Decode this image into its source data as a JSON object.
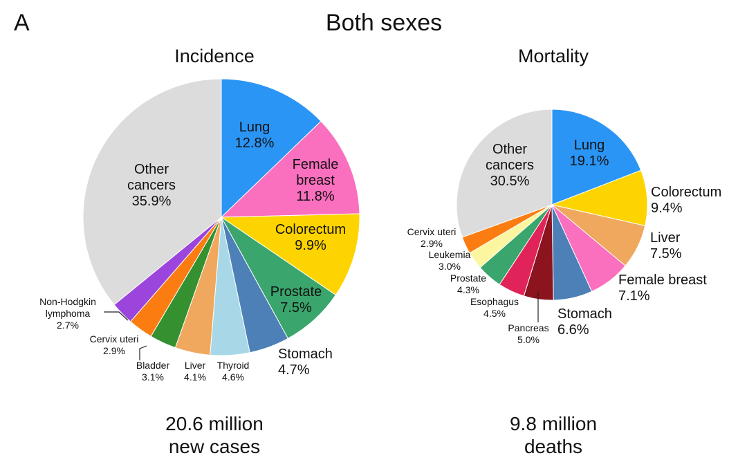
{
  "panel_letter": "A",
  "title": "Both sexes",
  "chart_data": [
    {
      "type": "pie",
      "title": "Incidence",
      "footer": [
        "20.6 million",
        "new cases"
      ],
      "start": "12 o'clock",
      "direction": "clockwise",
      "slices": [
        {
          "label": "Lung",
          "value": 12.8,
          "display": "12.8%",
          "color": "#2b95f5"
        },
        {
          "label": "Female breast",
          "value": 11.8,
          "display": "11.8%",
          "color": "#fb6fbf"
        },
        {
          "label": "Colorectum",
          "value": 9.9,
          "display": "9.9%",
          "color": "#fdd400"
        },
        {
          "label": "Prostate",
          "value": 7.5,
          "display": "7.5%",
          "color": "#3aa56c"
        },
        {
          "label": "Stomach",
          "value": 4.7,
          "display": "4.7%",
          "color": "#4d80b6"
        },
        {
          "label": "Thyroid",
          "value": 4.6,
          "display": "4.6%",
          "color": "#a8d8e8"
        },
        {
          "label": "Liver",
          "value": 4.1,
          "display": "4.1%",
          "color": "#f0a85e"
        },
        {
          "label": "Bladder",
          "value": 3.1,
          "display": "3.1%",
          "color": "#35902f"
        },
        {
          "label": "Cervix uteri",
          "value": 2.9,
          "display": "2.9%",
          "color": "#fb7d12"
        },
        {
          "label": "Non-Hodgkin lymphoma",
          "value": 2.7,
          "display": "2.7%",
          "color": "#9b45dd"
        },
        {
          "label": "Other cancers",
          "value": 35.9,
          "display": "35.9%",
          "color": "#dcdcdc"
        }
      ]
    },
    {
      "type": "pie",
      "title": "Mortality",
      "footer": [
        "9.8 million",
        "deaths"
      ],
      "start": "12 o'clock",
      "direction": "clockwise",
      "slices": [
        {
          "label": "Lung",
          "value": 19.1,
          "display": "19.1%",
          "color": "#2b95f5"
        },
        {
          "label": "Colorectum",
          "value": 9.4,
          "display": "9.4%",
          "color": "#fdd400"
        },
        {
          "label": "Liver",
          "value": 7.5,
          "display": "7.5%",
          "color": "#f0a85e"
        },
        {
          "label": "Female breast",
          "value": 7.1,
          "display": "7.1%",
          "color": "#fb6fbf"
        },
        {
          "label": "Stomach",
          "value": 6.6,
          "display": "6.6%",
          "color": "#4d80b6"
        },
        {
          "label": "Pancreas",
          "value": 5.0,
          "display": "5.0%",
          "color": "#8b141e"
        },
        {
          "label": "Esophagus",
          "value": 4.5,
          "display": "4.5%",
          "color": "#e0245a"
        },
        {
          "label": "Prostate",
          "value": 4.3,
          "display": "4.3%",
          "color": "#3aa56c"
        },
        {
          "label": "Leukemia",
          "value": 3.0,
          "display": "3.0%",
          "color": "#fcf6a0"
        },
        {
          "label": "Cervix uteri",
          "value": 2.9,
          "display": "2.9%",
          "color": "#fb7d12"
        },
        {
          "label": "Other cancers",
          "value": 30.5,
          "display": "30.5%",
          "color": "#dcdcdc"
        }
      ]
    }
  ]
}
